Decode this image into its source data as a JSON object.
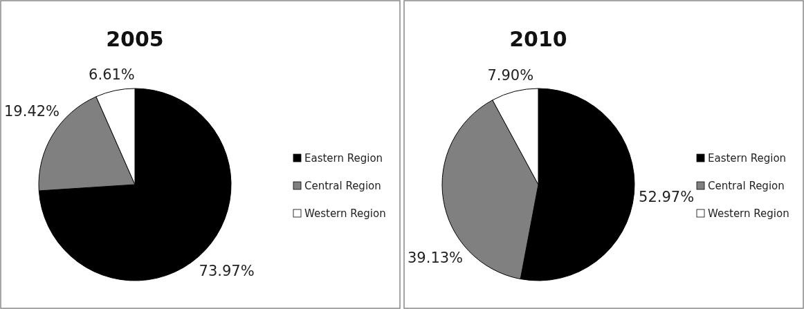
{
  "chart_data": [
    {
      "type": "pie",
      "title": "2005",
      "categories": [
        "Eastern Region",
        "Central Region",
        "Western Region"
      ],
      "values": [
        73.97,
        19.42,
        6.61
      ],
      "value_labels": [
        "73.97%",
        "19.42%",
        "6.61%"
      ],
      "colors": [
        "#000000",
        "#808080",
        "#ffffff"
      ],
      "legend": "right"
    },
    {
      "type": "pie",
      "title": "2010",
      "categories": [
        "Eastern Region",
        "Central Region",
        "Western Region"
      ],
      "values": [
        52.97,
        39.13,
        7.9
      ],
      "value_labels": [
        "52.97%",
        "39.13%",
        "7.90%"
      ],
      "colors": [
        "#000000",
        "#808080",
        "#ffffff"
      ],
      "legend": "right"
    }
  ]
}
